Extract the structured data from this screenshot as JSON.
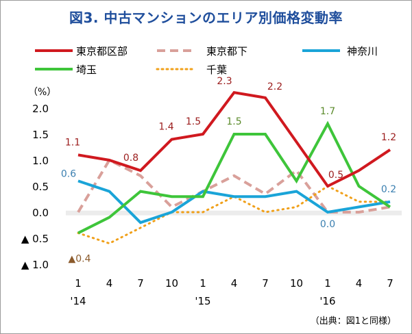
{
  "title": "図3. 中古マンションのエリア別価格変動率",
  "source_note": "（出典：図1と同様）",
  "chart_data": {
    "type": "line",
    "unit": "（%）",
    "ylim": [
      -1.0,
      2.0
    ],
    "yticks": [
      {
        "v": 2.0,
        "label": "2.0"
      },
      {
        "v": 1.5,
        "label": "1.5"
      },
      {
        "v": 1.0,
        "label": "1.0"
      },
      {
        "v": 0.5,
        "label": "0.5"
      },
      {
        "v": 0.0,
        "label": "0.0"
      },
      {
        "v": -0.5,
        "label": "▲ 0.5"
      },
      {
        "v": -1.0,
        "label": "▲ 1.0"
      }
    ],
    "categories": [
      "1",
      "4",
      "7",
      "10",
      "1",
      "4",
      "7",
      "10",
      "1",
      "4",
      "7"
    ],
    "year_labels": [
      {
        "index": 0,
        "label": "'14"
      },
      {
        "index": 4,
        "label": "'15"
      },
      {
        "index": 8,
        "label": "'16"
      }
    ],
    "series": [
      {
        "name": "東京都区部",
        "color": "#d0191f",
        "dash": "solid",
        "width": 4,
        "values": [
          1.1,
          1.0,
          0.8,
          1.4,
          1.5,
          2.3,
          2.2,
          1.35,
          0.5,
          0.8,
          1.2
        ]
      },
      {
        "name": "東京都下",
        "color": "#d9a09a",
        "dash": "dashed",
        "width": 4,
        "values": [
          0.0,
          1.0,
          0.7,
          0.1,
          0.4,
          0.7,
          0.35,
          0.8,
          0.0,
          0.0,
          0.1
        ]
      },
      {
        "name": "神奈川",
        "color": "#1aa4d8",
        "dash": "solid",
        "width": 4,
        "values": [
          0.6,
          0.4,
          -0.2,
          0.0,
          0.4,
          0.3,
          0.3,
          0.4,
          0.0,
          0.1,
          0.2
        ]
      },
      {
        "name": "埼玉",
        "color": "#3ec53a",
        "dash": "solid",
        "width": 4,
        "values": [
          -0.4,
          -0.1,
          0.4,
          0.3,
          0.3,
          1.5,
          1.5,
          0.6,
          1.7,
          0.5,
          0.1
        ]
      },
      {
        "name": "千葉",
        "color": "#f0a01a",
        "dash": "dotted",
        "width": 3,
        "values": [
          -0.4,
          -0.6,
          -0.3,
          0.0,
          0.0,
          0.3,
          0.0,
          0.1,
          0.5,
          0.2,
          0.2
        ]
      }
    ],
    "data_labels": [
      {
        "series": 0,
        "index": 0,
        "text": "1.1",
        "color": "#9b1c1c"
      },
      {
        "series": 0,
        "index": 2,
        "text": "0.8",
        "color": "#9b1c1c"
      },
      {
        "series": 0,
        "index": 3,
        "text": "1.4",
        "color": "#9b1c1c"
      },
      {
        "series": 0,
        "index": 4,
        "text": "1.5",
        "color": "#9b1c1c"
      },
      {
        "series": 0,
        "index": 5,
        "text": "2.3",
        "color": "#9b1c1c"
      },
      {
        "series": 0,
        "index": 6,
        "text": "2.2",
        "color": "#9b1c1c"
      },
      {
        "series": 0,
        "index": 8,
        "text": "0.5",
        "color": "#9b1c1c"
      },
      {
        "series": 0,
        "index": 10,
        "text": "1.2",
        "color": "#9b1c1c"
      },
      {
        "series": 3,
        "index": 5,
        "text": "1.5",
        "color": "#5a8a2a"
      },
      {
        "series": 3,
        "index": 8,
        "text": "1.7",
        "color": "#5a8a2a"
      },
      {
        "series": 2,
        "index": 0,
        "text": "0.6",
        "color": "#3a7fb0"
      },
      {
        "series": 2,
        "index": 8,
        "text": "0.0",
        "color": "#3a7fb0"
      },
      {
        "series": 2,
        "index": 10,
        "text": "0.2",
        "color": "#3a7fb0"
      },
      {
        "series": 4,
        "index": 0,
        "text": "▲0.4",
        "color": "#8b5a2b"
      }
    ],
    "legend": [
      {
        "series": 0
      },
      {
        "series": 1
      },
      {
        "series": 2
      },
      {
        "series": 3
      },
      {
        "series": 4
      }
    ],
    "zero_band": true
  }
}
